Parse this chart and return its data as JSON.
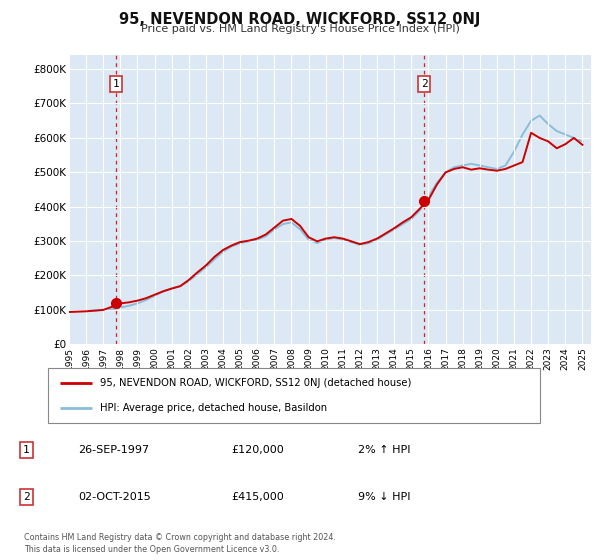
{
  "title": "95, NEVENDON ROAD, WICKFORD, SS12 0NJ",
  "subtitle": "Price paid vs. HM Land Registry's House Price Index (HPI)",
  "plot_bg_color": "#dce9f5",
  "grid_color": "#ffffff",
  "red_line_color": "#cc0000",
  "blue_line_color": "#8bbdd9",
  "sale1_date": 1997.74,
  "sale1_price": 120000,
  "sale2_date": 2015.75,
  "sale2_price": 415000,
  "ylabel_ticks": [
    "£0",
    "£100K",
    "£200K",
    "£300K",
    "£400K",
    "£500K",
    "£600K",
    "£700K",
    "£800K"
  ],
  "ytick_vals": [
    0,
    100000,
    200000,
    300000,
    400000,
    500000,
    600000,
    700000,
    800000
  ],
  "xmin": 1995.0,
  "xmax": 2025.5,
  "ymin": 0,
  "ymax": 840000,
  "legend_label1": "95, NEVENDON ROAD, WICKFORD, SS12 0NJ (detached house)",
  "legend_label2": "HPI: Average price, detached house, Basildon",
  "table_row1": [
    "1",
    "26-SEP-1997",
    "£120,000",
    "2% ↑ HPI"
  ],
  "table_row2": [
    "2",
    "02-OCT-2015",
    "£415,000",
    "9% ↓ HPI"
  ],
  "footer": "Contains HM Land Registry data © Crown copyright and database right 2024.\nThis data is licensed under the Open Government Licence v3.0.",
  "hpi_x": [
    1995.0,
    1995.5,
    1996.0,
    1996.5,
    1997.0,
    1997.5,
    1998.0,
    1998.5,
    1999.0,
    1999.5,
    2000.0,
    2000.5,
    2001.0,
    2001.5,
    2002.0,
    2002.5,
    2003.0,
    2003.5,
    2004.0,
    2004.5,
    2005.0,
    2005.5,
    2006.0,
    2006.5,
    2007.0,
    2007.5,
    2008.0,
    2008.5,
    2009.0,
    2009.5,
    2010.0,
    2010.5,
    2011.0,
    2011.5,
    2012.0,
    2012.5,
    2013.0,
    2013.5,
    2014.0,
    2014.5,
    2015.0,
    2015.5,
    2016.0,
    2016.5,
    2017.0,
    2017.5,
    2018.0,
    2018.5,
    2019.0,
    2019.5,
    2020.0,
    2020.5,
    2021.0,
    2021.5,
    2022.0,
    2022.5,
    2023.0,
    2023.5,
    2024.0,
    2024.5,
    2025.0
  ],
  "hpi_y": [
    96000,
    96500,
    97000,
    98000,
    100000,
    102000,
    107000,
    112000,
    119000,
    129000,
    141000,
    154000,
    162000,
    169000,
    184000,
    204000,
    224000,
    247000,
    269000,
    284000,
    294000,
    299000,
    304000,
    314000,
    334000,
    349000,
    354000,
    334000,
    304000,
    294000,
    304000,
    309000,
    304000,
    297000,
    289000,
    294000,
    304000,
    319000,
    334000,
    349000,
    364000,
    389000,
    429000,
    469000,
    499000,
    514000,
    519000,
    524000,
    519000,
    514000,
    509000,
    519000,
    559000,
    609000,
    649000,
    664000,
    639000,
    619000,
    609000,
    599000,
    589000
  ],
  "red_x": [
    1995.0,
    1995.5,
    1996.0,
    1996.5,
    1997.0,
    1997.5,
    1998.0,
    1998.5,
    1999.0,
    1999.5,
    2000.0,
    2000.5,
    2001.0,
    2001.5,
    2002.0,
    2002.5,
    2003.0,
    2003.5,
    2004.0,
    2004.5,
    2005.0,
    2005.5,
    2006.0,
    2006.5,
    2007.0,
    2007.5,
    2008.0,
    2008.5,
    2009.0,
    2009.5,
    2010.0,
    2010.5,
    2011.0,
    2011.5,
    2012.0,
    2012.5,
    2013.0,
    2013.5,
    2014.0,
    2014.5,
    2015.0,
    2015.5,
    2016.0,
    2016.5,
    2017.0,
    2017.5,
    2018.0,
    2018.5,
    2019.0,
    2019.5,
    2020.0,
    2020.5,
    2021.0,
    2021.5,
    2022.0,
    2022.5,
    2023.0,
    2023.5,
    2024.0,
    2024.5,
    2025.0
  ],
  "red_y": [
    94000,
    95000,
    96000,
    98000,
    100000,
    109000,
    119000,
    122000,
    127000,
    134000,
    144000,
    154000,
    162000,
    169000,
    187000,
    209000,
    229000,
    254000,
    274000,
    287000,
    297000,
    301000,
    307000,
    319000,
    339000,
    359000,
    364000,
    344000,
    311000,
    299000,
    307000,
    311000,
    307000,
    299000,
    291000,
    297000,
    307000,
    322000,
    337000,
    354000,
    369000,
    394000,
    419000,
    464000,
    499000,
    509000,
    514000,
    507000,
    511000,
    507000,
    504000,
    509000,
    519000,
    529000,
    614000,
    599000,
    589000,
    569000,
    581000,
    599000,
    579000
  ]
}
